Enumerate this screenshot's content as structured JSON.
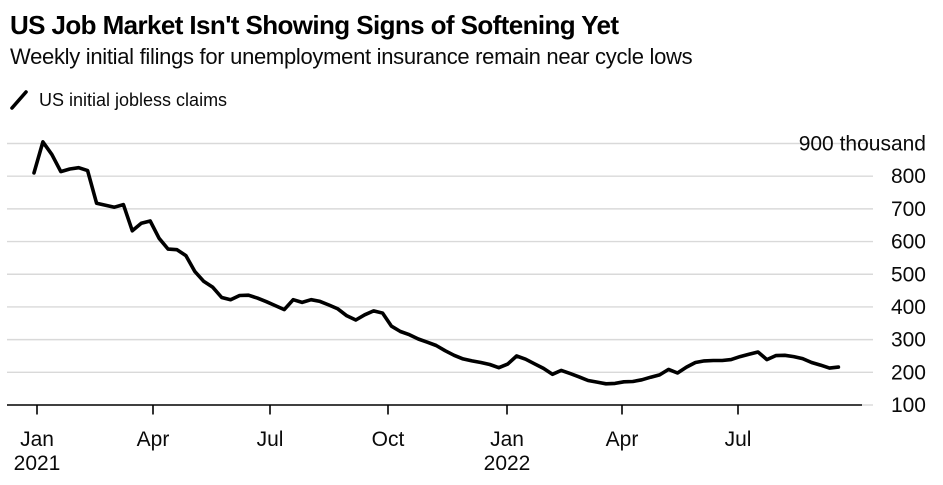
{
  "header": {
    "title": "US Job Market Isn't Showing Signs of Softening Yet",
    "subtitle": "Weekly initial filings for unemployment insurance remain near cycle lows"
  },
  "legend": {
    "label": "US initial jobless claims",
    "marker": "diagonal-line",
    "color": "#000000"
  },
  "chart_data": {
    "type": "line",
    "title": "US Job Market Isn't Showing Signs of Softening Yet",
    "subtitle": "Weekly initial filings for unemployment insurance remain near cycle lows",
    "xlabel": "",
    "ylabel": "",
    "y_unit": "thousand",
    "ylim": [
      100,
      900
    ],
    "grid": "horizontal",
    "gridline_color": "#d9d9d9",
    "axis_color": "#000000",
    "legend_position": "top-left",
    "y_ticks": [
      {
        "value": 900,
        "label": "900 thousand"
      },
      {
        "value": 800,
        "label": "800"
      },
      {
        "value": 700,
        "label": "700"
      },
      {
        "value": 600,
        "label": "600"
      },
      {
        "value": 500,
        "label": "500"
      },
      {
        "value": 400,
        "label": "400"
      },
      {
        "value": 300,
        "label": "300"
      },
      {
        "value": 200,
        "label": "200"
      },
      {
        "value": 100,
        "label": "100"
      }
    ],
    "x_ticks": [
      {
        "month": "Jan",
        "year": "2021"
      },
      {
        "month": "Apr",
        "year": ""
      },
      {
        "month": "Jul",
        "year": ""
      },
      {
        "month": "Oct",
        "year": ""
      },
      {
        "month": "Jan",
        "year": "2022"
      },
      {
        "month": "Apr",
        "year": ""
      },
      {
        "month": "Jul",
        "year": ""
      }
    ],
    "series": [
      {
        "name": "US initial jobless claims",
        "color": "#000000",
        "unit": "thousands",
        "frequency": "weekly",
        "week_ending": [
          "2021-01-02",
          "2021-01-09",
          "2021-01-16",
          "2021-01-23",
          "2021-01-30",
          "2021-02-06",
          "2021-02-13",
          "2021-02-20",
          "2021-02-27",
          "2021-03-06",
          "2021-03-13",
          "2021-03-20",
          "2021-03-27",
          "2021-04-03",
          "2021-04-10",
          "2021-04-17",
          "2021-04-24",
          "2021-05-01",
          "2021-05-08",
          "2021-05-15",
          "2021-05-22",
          "2021-05-29",
          "2021-06-05",
          "2021-06-12",
          "2021-06-19",
          "2021-06-26",
          "2021-07-03",
          "2021-07-10",
          "2021-07-17",
          "2021-07-24",
          "2021-07-31",
          "2021-08-07",
          "2021-08-14",
          "2021-08-21",
          "2021-08-28",
          "2021-09-04",
          "2021-09-11",
          "2021-09-18",
          "2021-09-25",
          "2021-10-02",
          "2021-10-09",
          "2021-10-16",
          "2021-10-23",
          "2021-10-30",
          "2021-11-06",
          "2021-11-13",
          "2021-11-20",
          "2021-11-27",
          "2021-12-04",
          "2021-12-11",
          "2021-12-18",
          "2021-12-25",
          "2022-01-01",
          "2022-01-08",
          "2022-01-15",
          "2022-01-22",
          "2022-01-29",
          "2022-02-05",
          "2022-02-12",
          "2022-02-19",
          "2022-02-26",
          "2022-03-05",
          "2022-03-12",
          "2022-03-19",
          "2022-03-26",
          "2022-04-02",
          "2022-04-09",
          "2022-04-16",
          "2022-04-23",
          "2022-04-30",
          "2022-05-07",
          "2022-05-14",
          "2022-05-21",
          "2022-05-28",
          "2022-06-04",
          "2022-06-11",
          "2022-06-18",
          "2022-06-25",
          "2022-07-02",
          "2022-07-09",
          "2022-07-16",
          "2022-07-23",
          "2022-07-30",
          "2022-08-06",
          "2022-08-13",
          "2022-08-20",
          "2022-08-27",
          "2022-09-03",
          "2022-09-10",
          "2022-09-17",
          "2022-09-24"
        ],
        "values": [
          810,
          905,
          866,
          814,
          822,
          826,
          817,
          717,
          711,
          705,
          713,
          633,
          656,
          663,
          610,
          577,
          575,
          557,
          508,
          478,
          460,
          429,
          422,
          435,
          436,
          427,
          416,
          404,
          392,
          422,
          414,
          422,
          417,
          406,
          394,
          373,
          360,
          376,
          388,
          381,
          341,
          325,
          315,
          302,
          292,
          282,
          266,
          252,
          241,
          235,
          230,
          224,
          214,
          225,
          250,
          240,
          226,
          212,
          194,
          206,
          196,
          186,
          175,
          170,
          165,
          166,
          171,
          172,
          177,
          185,
          192,
          209,
          198,
          216,
          230,
          235,
          236,
          236,
          239,
          248,
          255,
          262,
          239,
          251,
          252,
          248,
          242,
          230,
          222,
          213,
          216
        ]
      }
    ]
  }
}
